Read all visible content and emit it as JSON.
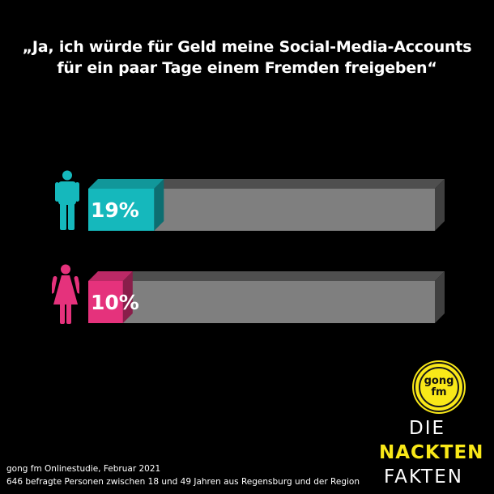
{
  "title": {
    "line1": "„Ja, ich würde für Geld meine Social-Media-Accounts",
    "line2": "für ein paar Tage einem Fremden freigeben“"
  },
  "chart_data": {
    "type": "bar",
    "orientation": "horizontal",
    "categories": [
      "male",
      "female"
    ],
    "values": [
      19,
      10
    ],
    "value_labels": [
      "19%",
      "10%"
    ],
    "xlim": [
      0,
      100
    ],
    "colors": {
      "male": "#15b8bc",
      "female": "#e5327c",
      "track": "#7f7f7f"
    },
    "title": "",
    "xlabel": "",
    "ylabel": "",
    "grid": false,
    "legend": "none"
  },
  "icons": {
    "male": "male-person-icon",
    "female": "female-person-icon"
  },
  "footer": {
    "line1": "gong fm Onlinestudie, Februar 2021",
    "line2": "646 befragte Personen zwischen 18 und 49 Jahren aus Regensburg und der Region"
  },
  "logo": {
    "line1": "gong",
    "line2": "fm",
    "color": "#f9e818"
  },
  "brand": {
    "line1": "DIE",
    "line2": "NACKTEN",
    "line3": "FAKTEN"
  }
}
